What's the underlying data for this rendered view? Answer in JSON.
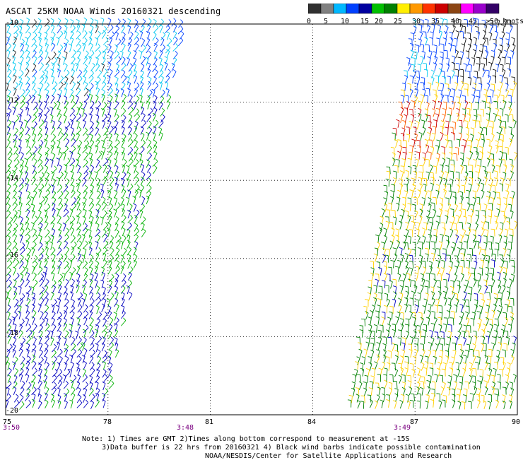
{
  "title": "ASCAT 25KM NOAA Winds 20160321 descending",
  "colorbar": {
    "colors": [
      "#303030",
      "#808080",
      "#00b8ff",
      "#0040ff",
      "#0000a0",
      "#00c000",
      "#008000",
      "#ffee00",
      "#ff9900",
      "#ff3300",
      "#cc0000",
      "#8b4513",
      "#ff00ff",
      "#9900cc",
      "#330066"
    ],
    "labels": [
      "0",
      "5",
      "10",
      "15",
      "20",
      "25",
      "30",
      "35",
      "40",
      "45",
      ">50 knots"
    ]
  },
  "axes": {
    "lat_labels": [
      "-10",
      "-12",
      "-14",
      "-16",
      "-18",
      "-20"
    ],
    "lon_labels": [
      "75",
      "78",
      "81",
      "84",
      "87",
      "90"
    ],
    "lat_range": [
      -20,
      -10
    ],
    "lon_range": [
      75,
      90
    ],
    "grid": "dotted"
  },
  "times": [
    "3:50",
    "3:48",
    "3:49"
  ],
  "notes": [
    "Note: 1) Times are GMT 2)Times along bottom correspond to measurement at -15S",
    "3)Data buffer is 22 hrs from 20160321 4) Black wind barbs indicate possible contamination",
    "NOAA/NESDIS/Center for Satellite Applications and Research"
  ],
  "swaths": [
    {
      "name": "west-swath",
      "time": "3:48"
    },
    {
      "name": "east-swath",
      "time": "3:49"
    }
  ]
}
